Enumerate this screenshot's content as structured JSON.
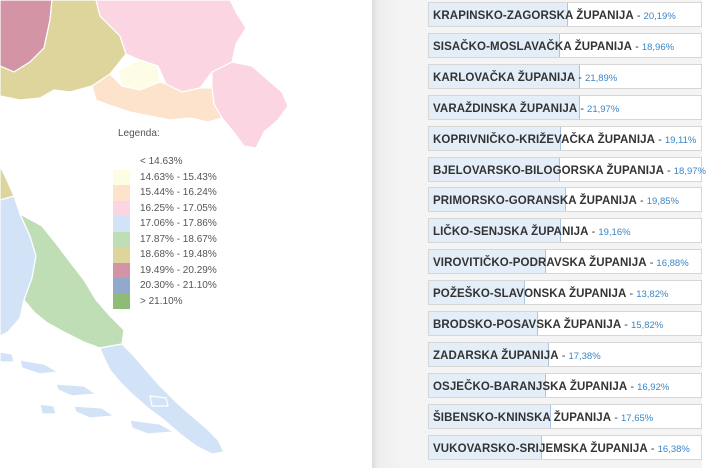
{
  "legend": {
    "title": "Legenda:",
    "items": [
      {
        "label": "< 14.63%",
        "color": "#ffffff"
      },
      {
        "label": "14.63% - 15.43%",
        "color": "#fdfde6"
      },
      {
        "label": "15.44% - 16.24%",
        "color": "#fde3cc"
      },
      {
        "label": "16.25% - 17.05%",
        "color": "#fbd5e2"
      },
      {
        "label": "17.06% - 17.86%",
        "color": "#d3e3f7"
      },
      {
        "label": "17.87% - 18.67%",
        "color": "#bfdeb5"
      },
      {
        "label": "18.68% - 19.48%",
        "color": "#ddd59c"
      },
      {
        "label": "19.49% - 20.29%",
        "color": "#d395a6"
      },
      {
        "label": "20.30% - 21.10%",
        "color": "#93a9cb"
      },
      {
        "label": "> 21.10%",
        "color": "#8fbb77"
      }
    ]
  },
  "counties": [
    {
      "name": "KRAPINSKO-ZAGORSKA ŽUPANIJA",
      "value": "20,19%",
      "share": 20.19
    },
    {
      "name": "SISAČKO-MOSLAVAČKA ŽUPANIJA",
      "value": "18,96%",
      "share": 18.96
    },
    {
      "name": "KARLOVAČKA ŽUPANIJA",
      "value": "21,89%",
      "share": 21.89
    },
    {
      "name": "VARAŽDINSKA ŽUPANIJA",
      "value": "21,97%",
      "share": 21.97
    },
    {
      "name": "KOPRIVNIČKO-KRIŽEVAČKA ŽUPANIJA",
      "value": "19,11%",
      "share": 19.11
    },
    {
      "name": "BJELOVARSKO-BILOGORSKA ŽUPANIJA",
      "value": "18,97%",
      "share": 18.97
    },
    {
      "name": "PRIMORSKO-GORANSKA ŽUPANIJA",
      "value": "19,85%",
      "share": 19.85
    },
    {
      "name": "LIČKO-SENJSKA ŽUPANIJA",
      "value": "19,16%",
      "share": 19.16
    },
    {
      "name": "VIROVITIČKO-PODRAVSKA ŽUPANIJA",
      "value": "16,88%",
      "share": 16.88
    },
    {
      "name": "POŽEŠKO-SLAVONSKA ŽUPANIJA",
      "value": "13,82%",
      "share": 13.82
    },
    {
      "name": "BRODSKO-POSAVSKA ŽUPANIJA",
      "value": "15,82%",
      "share": 15.82
    },
    {
      "name": "ZADARSKA ŽUPANIJA",
      "value": "17,38%",
      "share": 17.38
    },
    {
      "name": "OSJEČKO-BARANJSKA ŽUPANIJA",
      "value": "16,92%",
      "share": 16.92
    },
    {
      "name": "ŠIBENSKO-KNINSKA ŽUPANIJA",
      "value": "17,65%",
      "share": 17.65
    },
    {
      "name": "VUKOVARSKO-SRIJEMSKA ŽUPANIJA",
      "value": "16,38%",
      "share": 16.38
    }
  ],
  "scale_max_percent": 40
}
